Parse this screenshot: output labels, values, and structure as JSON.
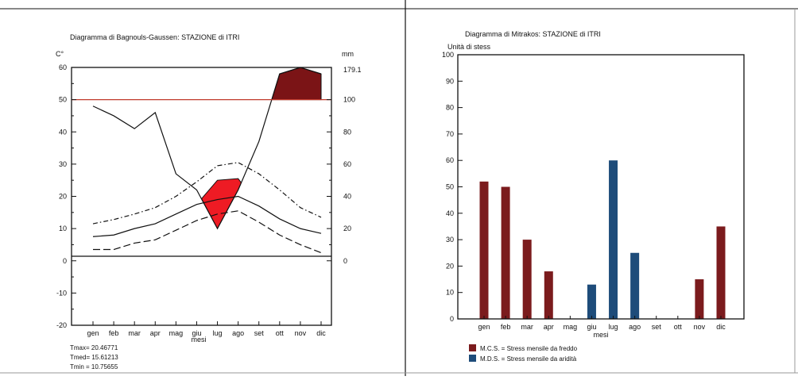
{
  "chart_data": [
    {
      "type": "line",
      "title": "Diagramma di Bagnouls-Gaussen: STAZIONE di ITRI",
      "ylabel_left": "C°",
      "ylabel_right": "mm",
      "xlabel": "mesi",
      "ylim_left": [
        -20,
        60
      ],
      "ylim_right": [
        0,
        120
      ],
      "right_tick_top": "179.1",
      "yticks_left": [
        "60",
        "50",
        "40",
        "30",
        "20",
        "10",
        "0",
        "-10",
        "-20"
      ],
      "yticks_right": [
        "100",
        "80",
        "60",
        "40",
        "20",
        "0"
      ],
      "categories": [
        "gen",
        "feb",
        "mar",
        "apr",
        "mag",
        "giu",
        "lug",
        "ago",
        "set",
        "ott",
        "nov",
        "dic"
      ],
      "reference_line_value": 50,
      "series": [
        {
          "key": "precip",
          "values": [
            48,
            45,
            41,
            46,
            27,
            22,
            10,
            22,
            37,
            58,
            60,
            58
          ]
        },
        {
          "key": "tmax",
          "values": [
            11.5,
            12.8,
            14.5,
            16.5,
            20,
            24.5,
            29.5,
            30.5,
            27,
            22,
            16.5,
            13.5
          ]
        },
        {
          "key": "tmed",
          "values": [
            7.5,
            8,
            10,
            11.5,
            14.5,
            17.5,
            19,
            20,
            17,
            13,
            10,
            8.5
          ]
        },
        {
          "key": "tmin",
          "values": [
            3.5,
            3.5,
            5.5,
            6.5,
            9.5,
            12.5,
            14.5,
            15.5,
            12,
            8,
            5,
            2.5
          ]
        }
      ],
      "arid_area": {
        "upper_key": "tmed",
        "upper_override": [
          null,
          null,
          null,
          null,
          null,
          null,
          25,
          25.5,
          null,
          null,
          null,
          null
        ]
      },
      "colors": {
        "reference": "#c0392b",
        "arid_fill": "#ee1b24",
        "humid_fill": "#7b1416",
        "line": "#111111"
      },
      "stats": [
        {
          "key": "tmax",
          "text": "Tmax= 20.46771"
        },
        {
          "key": "tmed",
          "text": "Tmed= 15.61213"
        },
        {
          "key": "tmin",
          "text": "Tmin = 10.75655"
        }
      ]
    },
    {
      "type": "bar",
      "title": "Diagramma di Mitrakos: STAZIONE di ITRI",
      "ylabel": "Unità di stess",
      "xlabel": "mesi",
      "ylim": [
        0,
        100
      ],
      "yticks": [
        "100",
        "90",
        "80",
        "70",
        "60",
        "50",
        "40",
        "30",
        "20",
        "10",
        "0"
      ],
      "categories": [
        "gen",
        "feb",
        "mar",
        "apr",
        "mag",
        "giu",
        "lug",
        "ago",
        "set",
        "ott",
        "nov",
        "dic"
      ],
      "series": [
        {
          "name": "M.C.S. = Stress mensile da freddo",
          "color": "#7b1b1d",
          "values": [
            52,
            50,
            30,
            18,
            0,
            0,
            0,
            0,
            0,
            0,
            15,
            35
          ]
        },
        {
          "name": "M.D.S. = Stress mensile da aridità",
          "color": "#1e4c7a",
          "values": [
            0,
            0,
            0,
            0,
            0,
            13,
            60,
            25,
            0,
            0,
            0,
            0
          ]
        }
      ]
    }
  ]
}
